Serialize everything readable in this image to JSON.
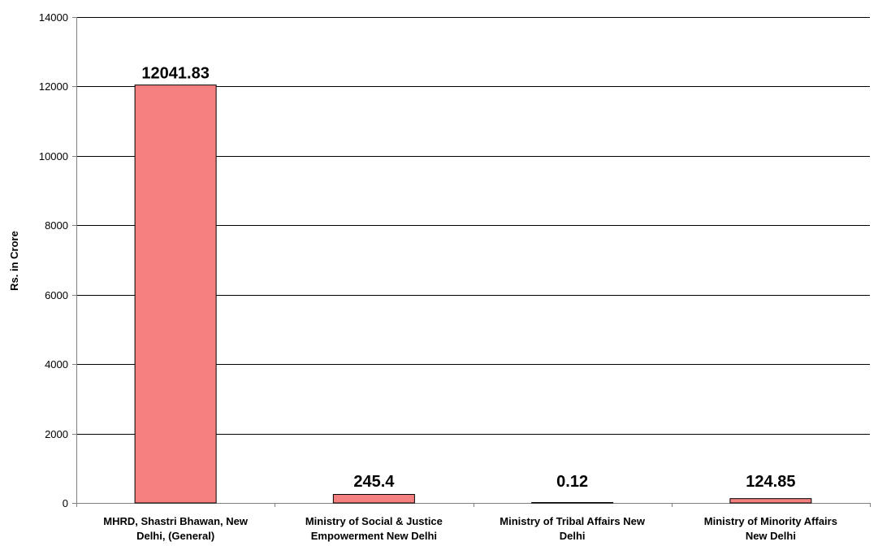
{
  "chart_data": {
    "type": "bar",
    "categories": [
      [
        "MHRD,  Shastri Bhawan, New",
        "Delhi, (General)"
      ],
      [
        "Ministry of Social & Justice",
        "Empowerment New Delhi"
      ],
      [
        "Ministry of Tribal Affairs New",
        "Delhi"
      ],
      [
        "Ministry of Minority Affairs",
        "New Delhi"
      ]
    ],
    "values": [
      12041.83,
      245.4,
      0.12,
      124.85
    ],
    "data_labels": [
      "12041.83",
      "245.4",
      "0.12",
      "124.85"
    ],
    "ylabel": "Rs. in Crore",
    "ylim": [
      0,
      14000
    ],
    "yticks": [
      0,
      2000,
      4000,
      6000,
      8000,
      10000,
      12000,
      14000
    ],
    "grid": true,
    "legend": "none",
    "colors": {
      "bar_fill": "#F48080",
      "bar_stroke": "#000000",
      "grid": "#000000",
      "axis": "#808080"
    }
  }
}
